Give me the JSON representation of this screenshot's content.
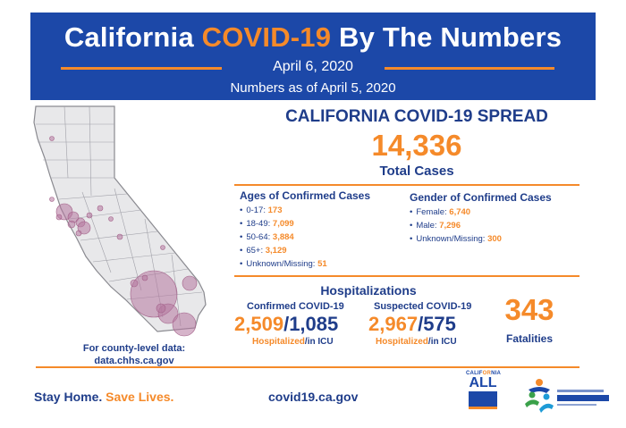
{
  "header": {
    "title_part1": "California ",
    "title_accent": "COVID-19",
    "title_part2": " By The Numbers",
    "date": "April 6, 2020",
    "as_of": "Numbers as of April 5, 2020"
  },
  "spread": {
    "title": "CALIFORNIA COVID-19 SPREAD",
    "total_cases": "14,336",
    "total_label": "Total Cases"
  },
  "ages": {
    "title": "Ages of Confirmed Cases",
    "items": [
      {
        "label": "0-17: ",
        "value": "173"
      },
      {
        "label": "18-49: ",
        "value": "7,099"
      },
      {
        "label": "50-64: ",
        "value": "3,884"
      },
      {
        "label": "65+: ",
        "value": "3,129"
      },
      {
        "label": "Unknown/Missing: ",
        "value": "51"
      }
    ]
  },
  "gender": {
    "title": "Gender of Confirmed Cases",
    "items": [
      {
        "label": "Female: ",
        "value": "6,740"
      },
      {
        "label": "Male: ",
        "value": "7,296"
      },
      {
        "label": "Unknown/Missing: ",
        "value": "300"
      }
    ]
  },
  "hospitalizations": {
    "title": "Hospitalizations",
    "confirmed": {
      "label": "Confirmed COVID-19",
      "hospitalized": "2,509",
      "icu": "1,085",
      "caption_hosp": "Hospitalized",
      "caption_icu": "in ICU"
    },
    "suspected": {
      "label": "Suspected COVID-19",
      "hospitalized": "2,967",
      "icu": "575",
      "caption_hosp": "Hospitalized",
      "caption_icu": "in ICU"
    },
    "slash": "/"
  },
  "fatalities": {
    "count": "343",
    "label": "Fatalities"
  },
  "county": {
    "line1": "For county-level data:",
    "line2": "data.chhs.ca.gov"
  },
  "footer": {
    "stay_home": "Stay Home. ",
    "save_lives": "Save Lives.",
    "website": "covid19.ca.gov"
  },
  "logos": {
    "ca_all_top_part1": "CALIF",
    "ca_all_top_accent": "OR",
    "ca_all_top_part2": "NIA",
    "ca_all_main": "ALL"
  },
  "colors": {
    "brand_blue": "#1c48a8",
    "text_blue": "#1f3d8a",
    "accent_orange": "#f58a2a",
    "map_bubble": "#b5779e"
  }
}
